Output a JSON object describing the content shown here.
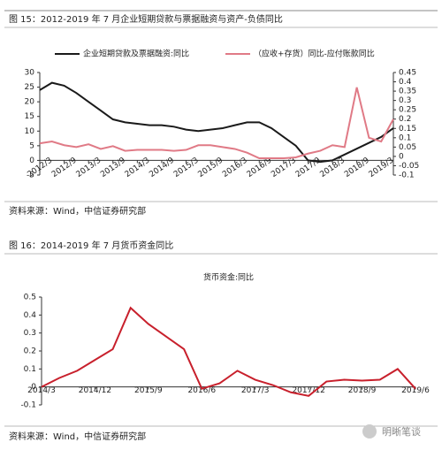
{
  "figures": [
    {
      "title": "图 15：2012-2019 年 7 月企业短期贷款与票据融资与资产-负债同比",
      "source": "资料来源：Wind，中信证券研究部",
      "chart_data": {
        "type": "line",
        "categories": [
          "2012/3",
          null,
          "2012/9",
          null,
          "2013/3",
          null,
          "2013/9",
          null,
          "2014/3",
          null,
          "2014/9",
          null,
          "2015/3",
          null,
          "2015/9",
          null,
          "2016/3",
          null,
          "2016/9",
          null,
          "2017/3",
          null,
          "2017/9",
          null,
          "2018/3",
          null,
          "2018/9",
          null,
          "2019/3",
          null
        ],
        "series": [
          {
            "name": "企业短期贷款及票据融资:同比",
            "color": "#1a1a1a",
            "values": [
              24,
              26.5,
              25.5,
              23,
              20,
              17,
              14,
              13,
              12.5,
              12,
              12,
              11.5,
              10.5,
              10,
              10.5,
              11,
              12,
              13,
              13,
              11,
              8,
              5,
              0,
              -0.5,
              0,
              2,
              4,
              6,
              8,
              11
            ]
          },
          {
            "name": "（应收+存货）同比-应付账款同比",
            "color": "#e07a86",
            "axis": "y2",
            "values": [
              0.07,
              0.08,
              0.06,
              0.05,
              0.065,
              0.04,
              0.055,
              0.03,
              0.035,
              0.035,
              0.035,
              0.03,
              0.035,
              0.06,
              0.06,
              0.05,
              0.04,
              0.02,
              -0.01,
              -0.01,
              -0.01,
              -0.005,
              0.015,
              0.03,
              0.06,
              0.05,
              0.37,
              0.1,
              0.08,
              0.2
            ]
          }
        ],
        "ylim": [
          -5,
          30
        ],
        "yticks": [
          -5,
          0,
          5,
          10,
          15,
          20,
          25,
          30
        ],
        "y2lim": [
          -0.1,
          0.45
        ],
        "y2ticks": [
          -0.1,
          -0.05,
          0,
          0.05,
          0.1,
          0.15,
          0.2,
          0.25,
          0.3,
          0.35,
          0.4,
          0.45
        ],
        "legend": "top"
      }
    },
    {
      "title": "图 16：2014-2019 年 7 月货币资金同比",
      "source": "资料来源：Wind，中信证券研究部",
      "chart_data": {
        "type": "line",
        "title": "货币资金:同比",
        "categories": [
          "2014/3",
          null,
          null,
          "2014/12",
          null,
          null,
          "2015/9",
          null,
          null,
          "2016/6",
          null,
          null,
          "2017/3",
          null,
          null,
          "2017/12",
          null,
          null,
          "2018/9",
          null,
          null,
          "2019/6"
        ],
        "series": [
          {
            "name": "货币资金:同比",
            "color": "#c8202c",
            "values": [
              0,
              0.05,
              0.09,
              0.15,
              0.21,
              0.44,
              0.35,
              0.28,
              0.21,
              -0.01,
              0.02,
              0.09,
              0.04,
              0.01,
              -0.03,
              -0.05,
              0.03,
              0.04,
              0.035,
              0.04,
              0.1,
              -0.01
            ]
          }
        ],
        "ylim": [
          -0.1,
          0.5
        ],
        "yticks": [
          -0.1,
          0,
          0.1,
          0.2,
          0.3,
          0.4,
          0.5
        ]
      }
    }
  ],
  "watermark": "明晰笔谈"
}
